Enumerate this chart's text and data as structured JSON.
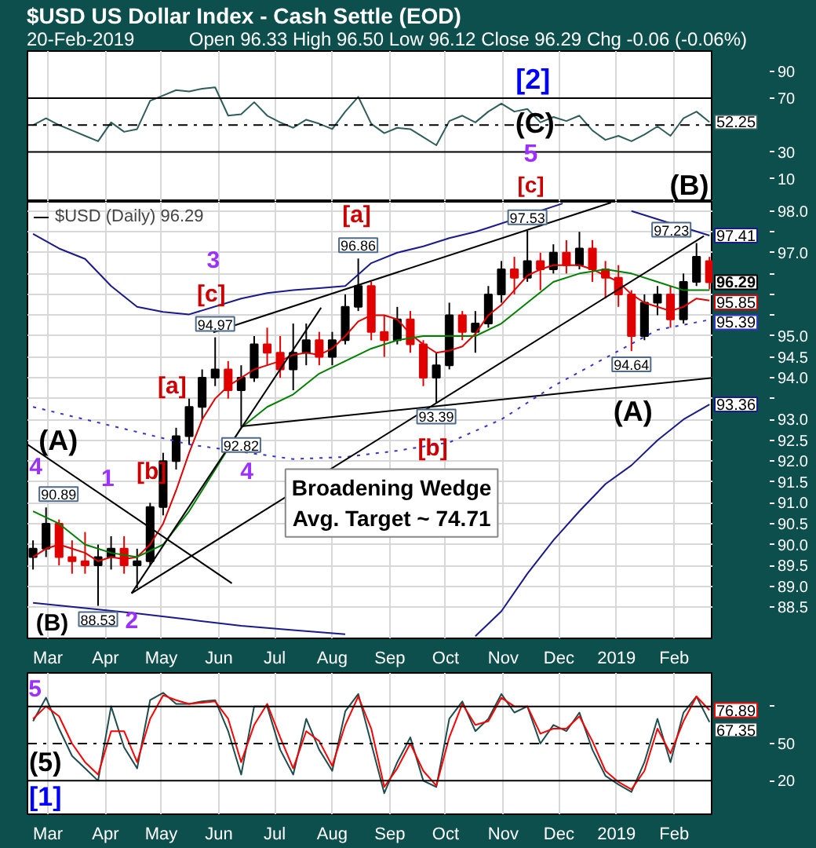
{
  "chart_data": [
    {
      "type": "line",
      "title": "$USD US Dollar Index - Cash Settle (EOD)",
      "subtitle": "20-Feb-2019",
      "annotations": [
        "Open 96.33 High 96.50 Low 96.12 Close 96.29 Chg -0.06 (-0.06%)",
        "[2]",
        "(C)",
        "5",
        "[c]",
        "(B)"
      ],
      "x": [
        "2018-02-21",
        "2018-02-28",
        "2018-03-07",
        "2018-03-14",
        "2018-03-21",
        "2018-03-28",
        "2018-04-04",
        "2018-04-11",
        "2018-04-18",
        "2018-04-25",
        "2018-05-02",
        "2018-05-09",
        "2018-05-16",
        "2018-05-23",
        "2018-05-30",
        "2018-06-06",
        "2018-06-13",
        "2018-06-20",
        "2018-06-27",
        "2018-07-04",
        "2018-07-11",
        "2018-07-18",
        "2018-07-25",
        "2018-08-01",
        "2018-08-08",
        "2018-08-15",
        "2018-08-22",
        "2018-08-29",
        "2018-09-05",
        "2018-09-12",
        "2018-09-19",
        "2018-09-26",
        "2018-10-03",
        "2018-10-10",
        "2018-10-17",
        "2018-10-24",
        "2018-10-31",
        "2018-11-07",
        "2018-11-14",
        "2018-11-21",
        "2018-11-28",
        "2018-12-05",
        "2018-12-12",
        "2018-12-19",
        "2018-12-26",
        "2019-01-02",
        "2019-01-09",
        "2019-01-16",
        "2019-01-23",
        "2019-01-30",
        "2019-02-06",
        "2019-02-13",
        "2019-02-20"
      ],
      "series": [
        {
          "color": "#2e5e5b",
          "values": [
            50,
            55,
            50,
            46,
            42,
            38,
            52,
            45,
            47,
            68,
            72,
            76,
            75,
            77,
            78,
            57,
            58,
            67,
            57,
            52,
            48,
            54,
            51,
            47,
            60,
            71,
            51,
            44,
            48,
            47,
            41,
            35,
            53,
            57,
            52,
            60,
            66,
            60,
            62,
            52,
            56,
            53,
            57,
            46,
            39,
            42,
            38,
            43,
            49,
            42,
            55,
            60,
            52.25
          ],
          "value_labels": [
            null,
            null,
            null,
            null,
            null,
            null,
            null,
            null,
            null,
            null,
            null,
            null,
            null,
            null,
            null,
            null,
            null,
            null,
            null,
            null,
            null,
            null,
            null,
            null,
            null,
            null,
            null,
            null,
            null,
            null,
            null,
            null,
            null,
            null,
            null,
            null,
            null,
            null,
            null,
            null,
            null,
            null,
            null,
            null,
            null,
            null,
            null,
            null,
            null,
            null,
            null,
            null,
            "52.25"
          ]
        }
      ],
      "xlim": [
        "2018-02-18",
        "2019-02-22"
      ],
      "xticks": [
        {
          "value": "2018-03-01",
          "label": null
        },
        {
          "value": "2018-04-01",
          "label": null
        },
        {
          "value": "2018-05-01",
          "label": null
        },
        {
          "value": "2018-06-01",
          "label": null
        },
        {
          "value": "2018-07-01",
          "label": null
        },
        {
          "value": "2018-08-01",
          "label": null
        },
        {
          "value": "2018-09-01",
          "label": null
        },
        {
          "value": "2018-10-01",
          "label": null
        },
        {
          "value": "2018-11-01",
          "label": null
        },
        {
          "value": "2018-12-01",
          "label": null
        },
        {
          "value": "2019-01-01",
          "label": null
        },
        {
          "value": "2019-02-01",
          "label": null
        }
      ],
      "ylim": [
        -7,
        105
      ],
      "yticks": [
        90,
        70,
        30,
        10
      ],
      "tick_labels": "y",
      "grid": "x",
      "ref_lines": [
        {
          "axis": "y",
          "value": 70,
          "color": "#000000"
        },
        {
          "axis": "y",
          "value": 50,
          "color": "#000000",
          "line_style": "dashdot"
        },
        {
          "axis": "y",
          "value": 30,
          "color": "#000000"
        }
      ]
    },
    {
      "type": "candlestick",
      "legend": "top left",
      "grid": true,
      "xlim": [
        "2018-02-18",
        "2019-02-22"
      ],
      "xticks": [
        {
          "value": "2018-03-01",
          "label": "Mar"
        },
        {
          "value": "2018-04-01",
          "label": "Apr"
        },
        {
          "value": "2018-05-01",
          "label": "May"
        },
        {
          "value": "2018-06-01",
          "label": "Jun"
        },
        {
          "value": "2018-07-01",
          "label": "Jul"
        },
        {
          "value": "2018-08-01",
          "label": "Aug"
        },
        {
          "value": "2018-09-01",
          "label": "Sep"
        },
        {
          "value": "2018-10-01",
          "label": "Oct"
        },
        {
          "value": "2018-11-01",
          "label": "Nov"
        },
        {
          "value": "2018-12-01",
          "label": "Dec"
        },
        {
          "value": "2019-01-01",
          "label": "2019"
        },
        {
          "value": "2019-02-01",
          "label": "Feb"
        }
      ],
      "ylim": [
        87.75,
        98.22
      ],
      "yticks": [
        88.5,
        {
          "value": 89,
          "label": "89.0"
        },
        89.5,
        {
          "value": 90,
          "label": "90.0"
        },
        90.5,
        {
          "value": 91,
          "label": "91.0"
        },
        91.5,
        {
          "value": 92,
          "label": "92.0"
        },
        92.5,
        {
          "value": 93,
          "label": "93.0"
        },
        {
          "value": 93.5,
          "label": null
        },
        {
          "value": 94,
          "label": "94.0"
        },
        94.5,
        {
          "value": 95,
          "label": "95.0"
        },
        {
          "value": 95.5,
          "label": null
        },
        {
          "value": 96,
          "label": null
        },
        {
          "value": 96.5,
          "label": null
        },
        {
          "value": 97,
          "label": "97.0"
        },
        {
          "value": 97.5,
          "label": null
        },
        {
          "value": 98,
          "label": "98.0"
        }
      ],
      "series": [
        {
          "type": "candlestick",
          "name": "$USD (Daily) 96.29",
          "x": [
            "2018-02-21",
            "2018-02-28",
            "2018-03-07",
            "2018-03-14",
            "2018-03-21",
            "2018-03-28",
            "2018-04-04",
            "2018-04-11",
            "2018-04-18",
            "2018-04-25",
            "2018-05-02",
            "2018-05-09",
            "2018-05-16",
            "2018-05-23",
            "2018-05-30",
            "2018-06-06",
            "2018-06-13",
            "2018-06-20",
            "2018-06-27",
            "2018-07-04",
            "2018-07-11",
            "2018-07-18",
            "2018-07-25",
            "2018-08-01",
            "2018-08-08",
            "2018-08-15",
            "2018-08-22",
            "2018-08-29",
            "2018-09-05",
            "2018-09-12",
            "2018-09-19",
            "2018-09-26",
            "2018-10-03",
            "2018-10-10",
            "2018-10-17",
            "2018-10-24",
            "2018-10-31",
            "2018-11-07",
            "2018-11-14",
            "2018-11-21",
            "2018-11-28",
            "2018-12-05",
            "2018-12-12",
            "2018-12-19",
            "2018-12-26",
            "2019-01-02",
            "2019-01-09",
            "2019-01-16",
            "2019-01-23",
            "2019-01-30",
            "2019-02-06",
            "2019-02-13",
            "2019-02-20"
          ],
          "ohlc": [
            [
              89.7,
              90.1,
              89.4,
              89.9
            ],
            [
              89.9,
              90.89,
              89.7,
              90.5
            ],
            [
              90.5,
              90.6,
              89.5,
              89.7
            ],
            [
              89.7,
              90.1,
              89.3,
              89.6
            ],
            [
              89.6,
              90.3,
              89.3,
              89.5
            ],
            [
              89.5,
              90.0,
              88.53,
              89.7
            ],
            [
              89.7,
              90.2,
              89.4,
              89.9
            ],
            [
              89.9,
              90.2,
              89.3,
              89.5
            ],
            [
              89.5,
              89.9,
              88.95,
              89.6
            ],
            [
              89.6,
              91.0,
              89.5,
              90.9
            ],
            [
              90.9,
              92.2,
              90.7,
              92.0
            ],
            [
              92.0,
              92.8,
              91.8,
              92.6
            ],
            [
              92.6,
              93.5,
              92.4,
              93.3
            ],
            [
              93.3,
              94.2,
              93.0,
              94.0
            ],
            [
              94.0,
              94.97,
              93.8,
              94.2
            ],
            [
              94.2,
              94.4,
              93.5,
              93.7
            ],
            [
              93.7,
              94.3,
              92.82,
              94.0
            ],
            [
              94.0,
              95.0,
              93.9,
              94.8
            ],
            [
              94.8,
              95.2,
              94.3,
              94.6
            ],
            [
              94.6,
              95.0,
              94.0,
              94.2
            ],
            [
              94.2,
              95.3,
              93.7,
              94.6
            ],
            [
              94.6,
              95.3,
              94.3,
              94.9
            ],
            [
              94.9,
              95.1,
              94.3,
              94.5
            ],
            [
              94.5,
              95.1,
              94.3,
              94.9
            ],
            [
              94.9,
              96.0,
              94.8,
              95.7
            ],
            [
              95.7,
              96.86,
              95.6,
              96.2
            ],
            [
              96.2,
              96.3,
              94.9,
              95.1
            ],
            [
              95.1,
              95.5,
              94.5,
              94.9
            ],
            [
              94.9,
              95.7,
              94.8,
              95.4
            ],
            [
              95.4,
              95.6,
              94.6,
              94.8
            ],
            [
              94.8,
              94.9,
              93.8,
              94.0
            ],
            [
              94.0,
              94.6,
              93.39,
              94.3
            ],
            [
              94.3,
              95.8,
              94.2,
              95.5
            ],
            [
              95.5,
              95.6,
              94.9,
              95.1
            ],
            [
              95.1,
              95.6,
              94.6,
              95.3
            ],
            [
              95.3,
              96.2,
              95.2,
              96.0
            ],
            [
              96.0,
              96.8,
              95.8,
              96.6
            ],
            [
              96.6,
              96.9,
              96.0,
              96.4
            ],
            [
              96.4,
              97.53,
              96.3,
              96.8
            ],
            [
              96.8,
              97.0,
              96.1,
              96.6
            ],
            [
              96.6,
              97.2,
              96.5,
              97.0
            ],
            [
              97.0,
              97.3,
              96.5,
              96.7
            ],
            [
              96.7,
              97.5,
              96.6,
              97.1
            ],
            [
              97.1,
              97.3,
              96.3,
              96.6
            ],
            [
              96.6,
              96.8,
              95.9,
              96.4
            ],
            [
              96.4,
              96.7,
              95.7,
              96.0
            ],
            [
              96.0,
              96.1,
              94.64,
              95.0
            ],
            [
              95.0,
              96.0,
              94.9,
              95.8
            ],
            [
              95.8,
              96.2,
              95.5,
              96.0
            ],
            [
              96.0,
              96.2,
              95.2,
              95.4
            ],
            [
              95.4,
              96.5,
              95.3,
              96.3
            ],
            [
              96.3,
              97.23,
              96.2,
              96.9
            ],
            [
              96.8,
              96.9,
              96.12,
              96.29
            ]
          ],
          "colors": [
            "#000000",
            "#000000",
            "#e00000",
            "#e00000",
            "#e00000",
            "#000000",
            "#000000",
            "#e00000",
            "#000000",
            "#000000",
            "#000000",
            "#000000",
            "#000000",
            "#000000",
            "#000000",
            "#e00000",
            "#000000",
            "#000000",
            "#e00000",
            "#e00000",
            "#000000",
            "#000000",
            "#e00000",
            "#000000",
            "#000000",
            "#000000",
            "#e00000",
            "#e00000",
            "#000000",
            "#e00000",
            "#e00000",
            "#000000",
            "#000000",
            "#e00000",
            "#000000",
            "#000000",
            "#000000",
            "#e00000",
            "#000000",
            "#e00000",
            "#000000",
            "#e00000",
            "#000000",
            "#e00000",
            "#e00000",
            "#e00000",
            "#e00000",
            "#000000",
            "#000000",
            "#e00000",
            "#000000",
            "#000000",
            "#e00000"
          ],
          "value_labels": [
            null,
            null,
            null,
            null,
            null,
            null,
            null,
            null,
            null,
            null,
            null,
            null,
            null,
            null,
            null,
            null,
            null,
            null,
            null,
            null,
            null,
            null,
            null,
            null,
            null,
            null,
            null,
            null,
            null,
            null,
            null,
            null,
            null,
            null,
            null,
            null,
            null,
            null,
            null,
            null,
            null,
            null,
            null,
            null,
            null,
            null,
            null,
            null,
            null,
            null,
            null,
            null,
            "96.29"
          ]
        },
        {
          "type": "line",
          "color": "#e00000",
          "x": [
            "2018-02-21",
            "2018-02-28",
            "2018-03-07",
            "2018-03-14",
            "2018-03-21",
            "2018-03-28",
            "2018-04-04",
            "2018-04-11",
            "2018-04-18",
            "2018-04-25",
            "2018-05-02",
            "2018-05-09",
            "2018-05-16",
            "2018-05-23",
            "2018-05-30",
            "2018-06-06",
            "2018-06-13",
            "2018-06-20",
            "2018-06-27",
            "2018-07-04",
            "2018-07-11",
            "2018-07-18",
            "2018-07-25",
            "2018-08-01",
            "2018-08-08",
            "2018-08-15",
            "2018-08-22",
            "2018-08-29",
            "2018-09-05",
            "2018-09-12",
            "2018-09-19",
            "2018-09-26",
            "2018-10-03",
            "2018-10-10",
            "2018-10-17",
            "2018-10-24",
            "2018-10-31",
            "2018-11-07",
            "2018-11-14",
            "2018-11-21",
            "2018-11-28",
            "2018-12-05",
            "2018-12-12",
            "2018-12-19",
            "2018-12-26",
            "2019-01-02",
            "2019-01-09",
            "2019-01-16",
            "2019-01-23",
            "2019-01-30",
            "2019-02-06",
            "2019-02-13",
            "2019-02-20"
          ],
          "values": [
            89.7,
            89.9,
            90.0,
            89.9,
            89.8,
            89.6,
            89.7,
            89.65,
            89.7,
            90.0,
            90.5,
            91.3,
            92.2,
            93.0,
            93.5,
            93.8,
            94.0,
            94.2,
            94.3,
            94.4,
            94.55,
            94.6,
            94.55,
            94.7,
            95.0,
            95.35,
            95.5,
            95.5,
            95.4,
            95.05,
            94.8,
            94.6,
            94.65,
            94.75,
            95.05,
            95.5,
            95.75,
            96.1,
            96.45,
            96.6,
            96.7,
            96.7,
            96.7,
            96.6,
            96.45,
            96.3,
            96.0,
            95.8,
            95.7,
            95.6,
            95.7,
            95.9,
            95.85
          ],
          "value_labels": [
            null,
            null,
            null,
            null,
            null,
            null,
            null,
            null,
            null,
            null,
            null,
            null,
            null,
            null,
            null,
            null,
            null,
            null,
            null,
            null,
            null,
            null,
            null,
            null,
            null,
            null,
            null,
            null,
            null,
            null,
            null,
            null,
            null,
            null,
            null,
            null,
            null,
            null,
            null,
            null,
            null,
            null,
            null,
            null,
            null,
            null,
            null,
            null,
            null,
            null,
            null,
            null,
            "95.85"
          ]
        },
        {
          "type": "line",
          "color": "#008000",
          "x": [
            "2018-02-21",
            "2018-03-07",
            "2018-03-21",
            "2018-04-04",
            "2018-04-18",
            "2018-05-02",
            "2018-05-16",
            "2018-05-30",
            "2018-06-13",
            "2018-06-27",
            "2018-07-11",
            "2018-07-25",
            "2018-08-08",
            "2018-08-22",
            "2018-09-05",
            "2018-09-19",
            "2018-10-03",
            "2018-10-17",
            "2018-10-31",
            "2018-11-14",
            "2018-11-28",
            "2018-12-12",
            "2018-12-26",
            "2019-01-09",
            "2019-01-23",
            "2019-02-06",
            "2019-02-20"
          ],
          "values": [
            90.8,
            90.5,
            90.0,
            89.8,
            89.7,
            90.0,
            90.8,
            91.8,
            92.8,
            93.3,
            93.6,
            94.1,
            94.4,
            94.7,
            94.9,
            95.0,
            95.0,
            95.0,
            95.3,
            95.8,
            96.3,
            96.5,
            96.6,
            96.5,
            96.3,
            96.1,
            96.1
          ]
        },
        {
          "type": "line",
          "color": "#3333cc",
          "line_style": "dotted",
          "x": [
            "2018-02-21",
            "2018-03-21",
            "2018-04-18",
            "2018-05-16",
            "2018-07-11",
            "2018-08-08",
            "2018-09-05",
            "2018-10-03",
            "2018-10-31",
            "2018-11-28",
            "2019-01-23",
            "2019-02-20"
          ],
          "values": [
            93.3,
            93.0,
            92.7,
            92.4,
            92.05,
            92.1,
            92.25,
            92.45,
            93.0,
            93.8,
            95.15,
            95.39
          ],
          "value_labels": [
            null,
            null,
            null,
            null,
            null,
            null,
            null,
            null,
            null,
            null,
            null,
            "95.39"
          ]
        },
        {
          "type": "line",
          "color": "#1a1a8c",
          "x": [
            "2018-02-21",
            "2018-03-07",
            "2018-03-21",
            "2018-04-04",
            "2018-04-18",
            "2018-05-02",
            "2018-05-16",
            "2018-06-13",
            "2018-06-27",
            "2018-07-11",
            "2018-07-25",
            "2018-08-08",
            "2018-08-22",
            "2018-09-05",
            "2018-09-19",
            "2018-10-03",
            "2018-10-17",
            "2018-10-24",
            "2018-12-03",
            "2018-12-12",
            "2018-12-26",
            "2019-01-09",
            "2019-02-20"
          ],
          "values": [
            97.45,
            97.1,
            96.85,
            96.2,
            95.7,
            95.58,
            95.52,
            95.9,
            96.03,
            96.1,
            96.15,
            96.2,
            96.75,
            97.0,
            97.15,
            97.35,
            97.5,
            97.6,
            98.18,
            null,
            null,
            98.0,
            97.41
          ],
          "value_labels": [
            null,
            null,
            null,
            null,
            null,
            null,
            null,
            null,
            null,
            null,
            null,
            null,
            null,
            null,
            null,
            null,
            null,
            null,
            null,
            null,
            null,
            null,
            "97.41"
          ]
        },
        {
          "type": "line",
          "color": "#1a1a8c",
          "x": [
            "2018-02-21",
            "2018-04-18",
            "2018-05-16",
            "2018-06-13",
            "2018-07-11",
            "2018-08-08",
            "2018-09-05",
            "2018-10-03",
            "2018-10-17",
            "2018-10-31",
            "2018-11-14",
            "2018-11-28",
            "2018-12-12",
            "2018-12-26",
            "2019-01-09",
            "2019-01-23",
            "2019-02-06",
            "2019-02-20"
          ],
          "values": [
            88.6,
            88.35,
            88.2,
            88.05,
            87.95,
            87.85,
            null,
            null,
            87.8,
            88.4,
            89.3,
            90.1,
            90.8,
            91.45,
            91.9,
            92.5,
            93.0,
            93.36
          ],
          "value_labels": [
            null,
            null,
            null,
            null,
            null,
            null,
            null,
            null,
            null,
            null,
            null,
            null,
            null,
            null,
            null,
            null,
            null,
            "93.36"
          ]
        },
        {
          "type": "line",
          "color": "#000000",
          "x": [
            "2018-05-29",
            "2018-12-29"
          ],
          "values": [
            95.09,
            98.2
          ]
        },
        {
          "type": "line",
          "color": "#000000",
          "x": [
            "2018-04-15",
            "2019-02-17"
          ],
          "values": [
            88.83,
            97.4
          ]
        },
        {
          "type": "line",
          "color": "#000000",
          "x": [
            "2018-04-15",
            "2018-07-26"
          ],
          "values": [
            88.83,
            95.68
          ]
        },
        {
          "type": "line",
          "color": "#000000",
          "x": [
            "2018-06-14",
            "2019-02-22"
          ],
          "values": [
            92.84,
            94.0
          ]
        },
        {
          "type": "line",
          "color": "#000000",
          "x": [
            "2018-02-18",
            "2018-06-08"
          ],
          "values": [
            92.4,
            89.07
          ]
        }
      ],
      "annotations": [
        {
          "text": "90.89",
          "x": "2018-02-28",
          "y": 90.89
        },
        {
          "text": "88.53",
          "x": "2018-03-28",
          "y": 88.53
        },
        {
          "text": "94.97",
          "x": "2018-05-30",
          "y": 94.97
        },
        {
          "text": "92.82",
          "x": "2018-06-13",
          "y": 92.82
        },
        {
          "text": "96.86",
          "x": "2018-08-15",
          "y": 96.86
        },
        {
          "text": "93.39",
          "x": "2018-09-26",
          "y": 93.39
        },
        {
          "text": "97.53",
          "x": "2018-11-14",
          "y": 97.53
        },
        {
          "text": "94.64",
          "x": "2019-01-09",
          "y": 94.64
        },
        {
          "text": "97.23",
          "x": "2019-02-13",
          "y": 97.23
        },
        "(A)",
        "1",
        "2",
        "[a]",
        "[b]",
        "[c]",
        "3",
        "4",
        "[a]",
        "[b]",
        "(A)",
        "4",
        "(B)",
        "Broadening Wedge\nAvg. Target ~ 74.71"
      ]
    },
    {
      "type": "line",
      "grid": true,
      "x": [
        "2018-02-21",
        "2018-02-28",
        "2018-03-07",
        "2018-03-14",
        "2018-03-21",
        "2018-03-28",
        "2018-04-04",
        "2018-04-11",
        "2018-04-18",
        "2018-04-25",
        "2018-05-02",
        "2018-05-09",
        "2018-05-16",
        "2018-05-23",
        "2018-05-30",
        "2018-06-06",
        "2018-06-13",
        "2018-06-20",
        "2018-06-27",
        "2018-07-04",
        "2018-07-11",
        "2018-07-18",
        "2018-07-25",
        "2018-08-01",
        "2018-08-08",
        "2018-08-15",
        "2018-08-22",
        "2018-08-29",
        "2018-09-05",
        "2018-09-12",
        "2018-09-19",
        "2018-09-26",
        "2018-10-03",
        "2018-10-10",
        "2018-10-17",
        "2018-10-24",
        "2018-10-31",
        "2018-11-07",
        "2018-11-14",
        "2018-11-21",
        "2018-11-28",
        "2018-12-05",
        "2018-12-12",
        "2018-12-19",
        "2018-12-26",
        "2019-01-02",
        "2019-01-09",
        "2019-01-16",
        "2019-01-23",
        "2019-01-30",
        "2019-02-06",
        "2019-02-13",
        "2019-02-20"
      ],
      "series": [
        {
          "color": "#1d4d4d",
          "values": [
            68,
            87,
            62,
            40,
            30,
            20,
            80,
            47,
            30,
            85,
            91,
            82,
            82,
            84,
            85,
            60,
            25,
            80,
            80,
            45,
            25,
            70,
            45,
            28,
            76,
            90,
            50,
            10,
            35,
            55,
            20,
            15,
            70,
            84,
            60,
            70,
            90,
            75,
            80,
            50,
            65,
            60,
            75,
            45,
            24,
            17,
            11,
            35,
            70,
            35,
            75,
            88,
            67.35
          ],
          "value_labels": [
            null,
            null,
            null,
            null,
            null,
            null,
            null,
            null,
            null,
            null,
            null,
            null,
            null,
            null,
            null,
            null,
            null,
            null,
            null,
            null,
            null,
            null,
            null,
            null,
            null,
            null,
            null,
            null,
            null,
            null,
            null,
            null,
            null,
            null,
            null,
            null,
            null,
            null,
            null,
            null,
            null,
            null,
            null,
            null,
            null,
            null,
            null,
            null,
            null,
            null,
            null,
            null,
            "67.35"
          ]
        },
        {
          "color": "#ff0000",
          "values": [
            70,
            80,
            72,
            50,
            35,
            25,
            60,
            60,
            35,
            70,
            89,
            85,
            82,
            83,
            84,
            70,
            35,
            65,
            82,
            55,
            30,
            60,
            52,
            32,
            65,
            88,
            62,
            15,
            30,
            50,
            28,
            16,
            55,
            82,
            65,
            68,
            87,
            80,
            80,
            58,
            62,
            62,
            72,
            52,
            28,
            19,
            13,
            28,
            62,
            42,
            68,
            88,
            76.89
          ],
          "value_labels": [
            null,
            null,
            null,
            null,
            null,
            null,
            null,
            null,
            null,
            null,
            null,
            null,
            null,
            null,
            null,
            null,
            null,
            null,
            null,
            null,
            null,
            null,
            null,
            null,
            null,
            null,
            null,
            null,
            null,
            null,
            null,
            null,
            null,
            null,
            null,
            null,
            null,
            null,
            null,
            null,
            null,
            null,
            null,
            null,
            null,
            null,
            null,
            null,
            null,
            null,
            null,
            null,
            "76.89"
          ]
        }
      ],
      "xlim": [
        "2018-02-18",
        "2019-02-22"
      ],
      "xticks": [
        {
          "value": "2018-03-01",
          "label": "Mar"
        },
        {
          "value": "2018-04-01",
          "label": "Apr"
        },
        {
          "value": "2018-05-01",
          "label": "May"
        },
        {
          "value": "2018-06-01",
          "label": "Jun"
        },
        {
          "value": "2018-07-01",
          "label": "Jul"
        },
        {
          "value": "2018-08-01",
          "label": "Aug"
        },
        {
          "value": "2018-09-01",
          "label": "Sep"
        },
        {
          "value": "2018-10-01",
          "label": "Oct"
        },
        {
          "value": "2018-11-01",
          "label": "Nov"
        },
        {
          "value": "2018-12-01",
          "label": "Dec"
        },
        {
          "value": "2019-01-01",
          "label": "2019"
        },
        {
          "value": "2019-02-01",
          "label": "Feb"
        }
      ],
      "ylim": [
        -7,
        107
      ],
      "yticks": [
        {
          "value": 80,
          "label": null
        },
        50,
        20
      ],
      "ref_lines": [
        {
          "axis": "y",
          "value": 80,
          "color": "#000000"
        },
        {
          "axis": "y",
          "value": 50,
          "color": "#000000",
          "line_style": "dashdot"
        },
        {
          "axis": "y",
          "value": 20,
          "color": "#000000"
        }
      ],
      "annotations": [
        "5",
        "(5)",
        "[1]"
      ]
    }
  ]
}
